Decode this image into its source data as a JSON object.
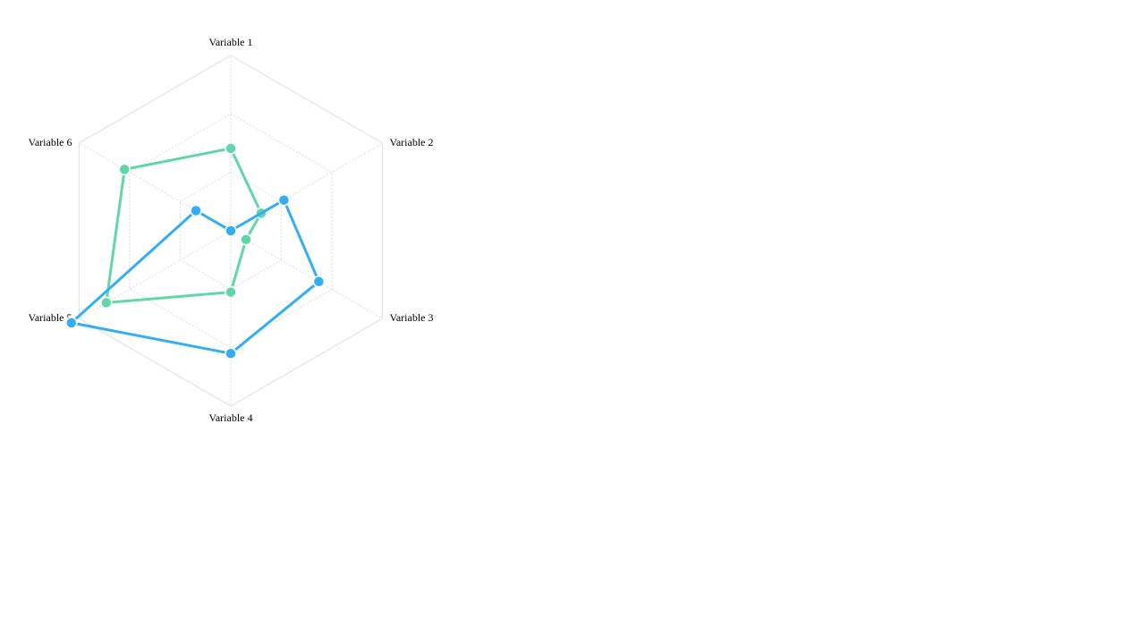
{
  "chart_data": {
    "type": "radar",
    "axes": [
      "Variable 1",
      "Variable 2",
      "Variable 3",
      "Variable 4",
      "Variable 5",
      "Variable 6"
    ],
    "range": [
      0,
      1
    ],
    "grid_rings": 3,
    "series": [
      {
        "color": "#60d7a7",
        "values": [
          0.47,
          0.2,
          0.1,
          0.35,
          0.82,
          0.7
        ]
      },
      {
        "color": "#33aef2",
        "values": [
          0.0,
          0.35,
          0.58,
          0.7,
          1.05,
          0.23
        ]
      }
    ]
  }
}
